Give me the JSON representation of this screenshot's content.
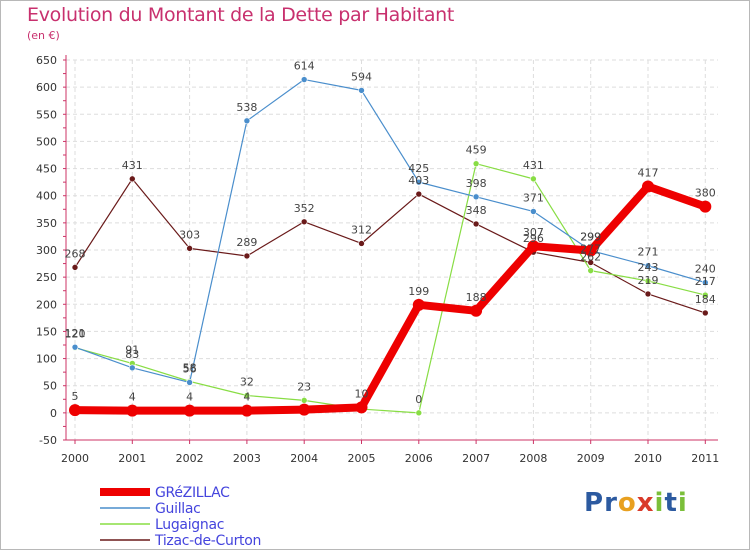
{
  "chart_data": {
    "type": "line",
    "title": "Evolution du Montant de la Dette par Habitant",
    "subtitle": "(en €)",
    "xlabel": "",
    "ylabel": "",
    "categories": [
      "2000",
      "2001",
      "2002",
      "2003",
      "2004",
      "2005",
      "2006",
      "2007",
      "2008",
      "2009",
      "2010",
      "2011"
    ],
    "ylim": [
      -50,
      650
    ],
    "yticks": [
      "-50",
      "0",
      "50",
      "100",
      "150",
      "200",
      "250",
      "300",
      "350",
      "400",
      "450",
      "500",
      "550",
      "600",
      "650"
    ],
    "legend_position": "bottom-left",
    "series": [
      {
        "name": "GRéZILLAC",
        "color": "#ee0000",
        "values": [
          5,
          4,
          4,
          4,
          6,
          10,
          199,
          188,
          307,
          299,
          417,
          380
        ],
        "labels": [
          "5",
          "4",
          "4",
          "4",
          "",
          "10",
          "199",
          "188",
          "307",
          "299",
          "417",
          "380"
        ]
      },
      {
        "name": "Guillac",
        "color": "#4a8ecc",
        "values": [
          121,
          83,
          56,
          538,
          614,
          594,
          425,
          398,
          371,
          299,
          271,
          240
        ],
        "labels": [
          "121",
          "83",
          "56",
          "538",
          "614",
          "594",
          "425",
          "398",
          "371",
          "299",
          "271",
          "240"
        ]
      },
      {
        "name": "Lugaignac",
        "color": "#88dd44",
        "values": [
          120,
          91,
          58,
          32,
          23,
          7,
          0,
          459,
          431,
          262,
          243,
          217
        ],
        "labels": [
          "120",
          "91",
          "58",
          "32",
          "23",
          "",
          "0",
          "459",
          "431",
          "262",
          "243",
          "217"
        ]
      },
      {
        "name": "Tizac-de-Curton",
        "color": "#6a1a1a",
        "values": [
          268,
          431,
          303,
          289,
          352,
          312,
          403,
          348,
          296,
          277,
          219,
          184
        ],
        "labels": [
          "268",
          "431",
          "303",
          "289",
          "352",
          "312",
          "403",
          "348",
          "296",
          "277",
          "219",
          "184"
        ]
      }
    ]
  },
  "logo": {
    "letters": [
      "P",
      "r",
      "o",
      "x",
      "i",
      "t",
      "i"
    ],
    "colors": [
      "#2c5aa0",
      "#2c5aa0",
      "#e8a020",
      "#d93a2a",
      "#7bbf3a",
      "#2c5aa0",
      "#7bbf3a"
    ]
  }
}
